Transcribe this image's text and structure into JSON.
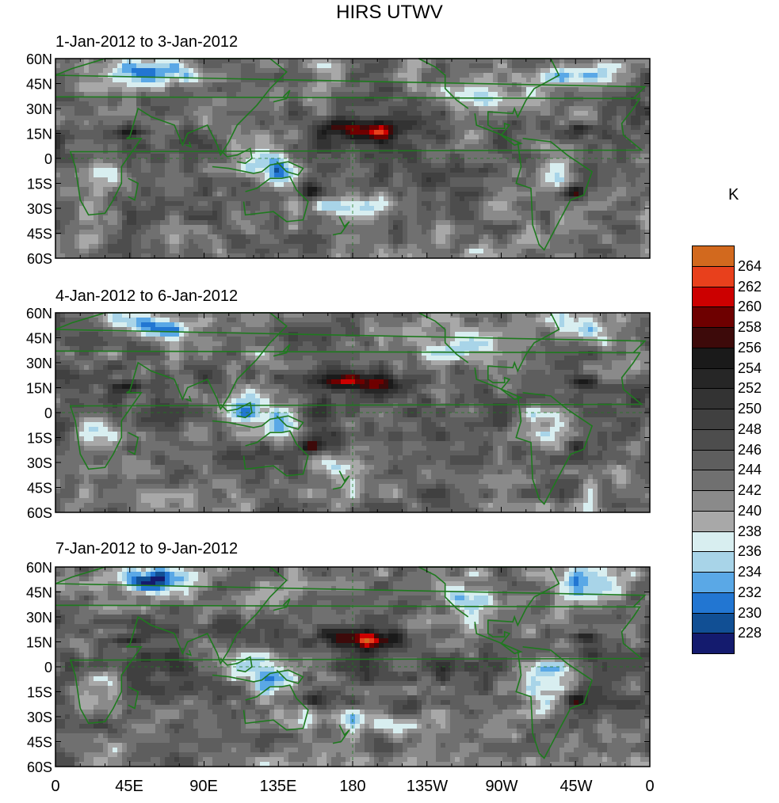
{
  "title": "HIRS UTWV",
  "panels": [
    {
      "label": "1-Jan-2012 to 3-Jan-2012"
    },
    {
      "label": "4-Jan-2012 to 6-Jan-2012"
    },
    {
      "label": "7-Jan-2012 to 9-Jan-2012"
    }
  ],
  "lat_labels": [
    "60N",
    "45N",
    "30N",
    "15N",
    "0",
    "15S",
    "30S",
    "45S",
    "60S"
  ],
  "lon_labels": [
    "0",
    "45E",
    "90E",
    "135E",
    "180",
    "135W",
    "90W",
    "45W",
    "0"
  ],
  "colorbar": {
    "unit": "K",
    "levels": [
      "264",
      "262",
      "260",
      "258",
      "256",
      "254",
      "252",
      "250",
      "248",
      "246",
      "244",
      "242",
      "240",
      "238",
      "236",
      "234",
      "232",
      "230",
      "228"
    ],
    "colors": [
      "#d2691e",
      "#e8401c",
      "#cc0000",
      "#6e0000",
      "#3d0a0a",
      "#1a1a1a",
      "#262626",
      "#333333",
      "#404040",
      "#4d4d4d",
      "#5e5e5e",
      "#707070",
      "#8a8a8a",
      "#a8a8a8",
      "#d8eef0",
      "#a8d4e8",
      "#5aa8e6",
      "#2276d2",
      "#114f94",
      "#141b6e"
    ]
  },
  "map_colors": {
    "coast": "#1e7a1e",
    "frame": "#000000"
  }
}
